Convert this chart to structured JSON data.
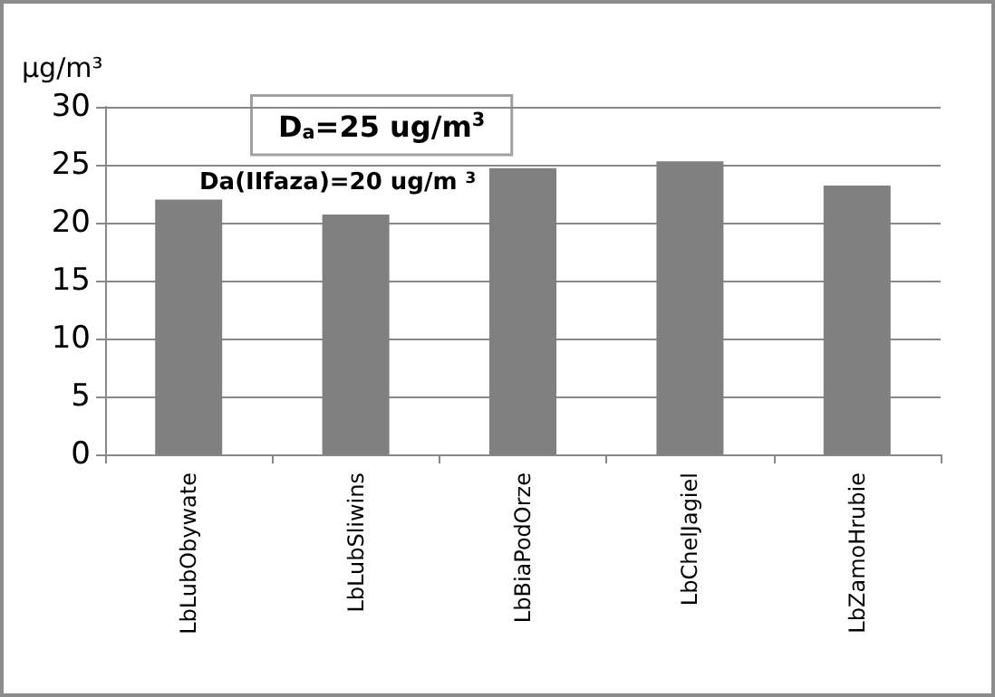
{
  "chart_data": {
    "type": "bar",
    "ylabel": "µg/m³",
    "categories": [
      "LbLubObywate",
      "LbLubSliwins",
      "LbBiaPodOrze",
      "LbChelJagiel",
      "LbZamoHrubie"
    ],
    "values": [
      22.0,
      20.7,
      24.7,
      25.3,
      23.2
    ],
    "color": "#808080",
    "ylim": [
      0,
      30
    ],
    "yticks": [
      0,
      5,
      10,
      15,
      20,
      25,
      30
    ],
    "grid": "y",
    "annotations": [
      "D$_{a}$=25 ug/m$^{3}$",
      "Da(IIfaza)=20 ug/m $^{3}$"
    ]
  }
}
